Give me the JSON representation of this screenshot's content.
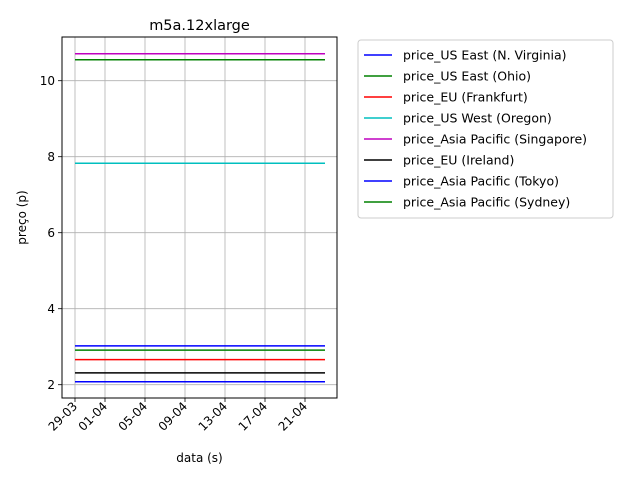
{
  "chart_data": {
    "type": "line",
    "title": "m5a.12xlarge",
    "xlabel": "data (s)",
    "ylabel": "preço (p)",
    "x_start": "29-03",
    "x_end": "23-04",
    "x_ticks": [
      "29-03",
      "01-04",
      "05-04",
      "09-04",
      "13-04",
      "17-04",
      "21-04"
    ],
    "y_ticks": [
      2,
      4,
      6,
      8,
      10
    ],
    "ylim": [
      1.65,
      11.15
    ],
    "grid": true,
    "legend_position": "outside-right",
    "series": [
      {
        "name": "price_US East (N. Virginia)",
        "color": "#0000ff",
        "values": [
          3.02,
          3.02
        ]
      },
      {
        "name": "price_US East (Ohio)",
        "color": "#008000",
        "values": [
          2.91,
          2.91
        ]
      },
      {
        "name": "price_EU (Frankfurt)",
        "color": "#ff0000",
        "values": [
          2.66,
          2.66
        ]
      },
      {
        "name": "price_US West (Oregon)",
        "color": "#00bfbf",
        "values": [
          7.83,
          7.83
        ]
      },
      {
        "name": "price_Asia Pacific (Singapore)",
        "color": "#bf00bf",
        "values": [
          10.71,
          10.71
        ]
      },
      {
        "name": "price_EU (Ireland)",
        "color": "#000000",
        "values": [
          2.31,
          2.31
        ]
      },
      {
        "name": "price_Asia Pacific (Tokyo)",
        "color": "#0000ff",
        "values": [
          2.08,
          2.08
        ]
      },
      {
        "name": "price_Asia Pacific (Sydney)",
        "color": "#008000",
        "values": [
          10.55,
          10.55
        ]
      }
    ]
  }
}
